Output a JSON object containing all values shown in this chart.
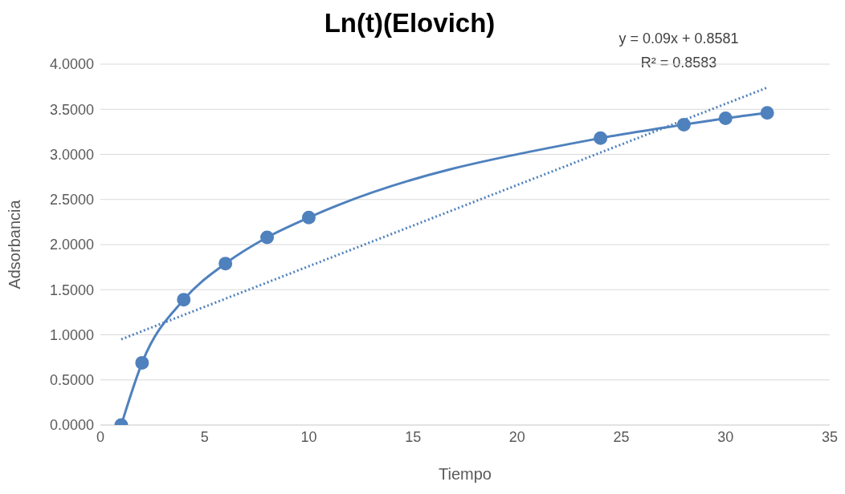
{
  "chart_data": {
    "type": "line",
    "title": "Ln(t)(Elovich)",
    "xlabel": "Tiempo",
    "ylabel": "Adsorbancia",
    "annotations": [
      "y = 0.09x + 0.8581",
      "R² = 0.8583"
    ],
    "series": [
      {
        "color": "#4f81bd",
        "marker": "circle",
        "x": [
          1,
          2,
          4,
          6,
          8,
          10,
          24,
          28,
          30,
          32
        ],
        "values": [
          0,
          0.69,
          1.39,
          1.79,
          2.08,
          2.3,
          3.18,
          3.33,
          3.4,
          3.46
        ]
      },
      {
        "type": "line",
        "color": "#4f81bd",
        "marker": "none",
        "line_style": "dotted",
        "x": [
          1,
          32
        ],
        "values": [
          0.95,
          3.74
        ]
      }
    ],
    "xlim": [
      0,
      35
    ],
    "xticks": [
      0,
      5,
      10,
      15,
      20,
      25,
      30,
      35
    ],
    "ylim": [
      0,
      4
    ],
    "yticks": [
      {
        "value": 0,
        "label": "0.0000"
      },
      {
        "value": 0.5,
        "label": "0.5000"
      },
      {
        "value": 1,
        "label": "1.0000"
      },
      {
        "value": 1.5,
        "label": "1.5000"
      },
      {
        "value": 2,
        "label": "2.0000"
      },
      {
        "value": 2.5,
        "label": "2.5000"
      },
      {
        "value": 3,
        "label": "3.0000"
      },
      {
        "value": 3.5,
        "label": "3.5000"
      },
      {
        "value": 4,
        "label": "4.0000"
      }
    ],
    "grid": "y",
    "legend": false
  }
}
